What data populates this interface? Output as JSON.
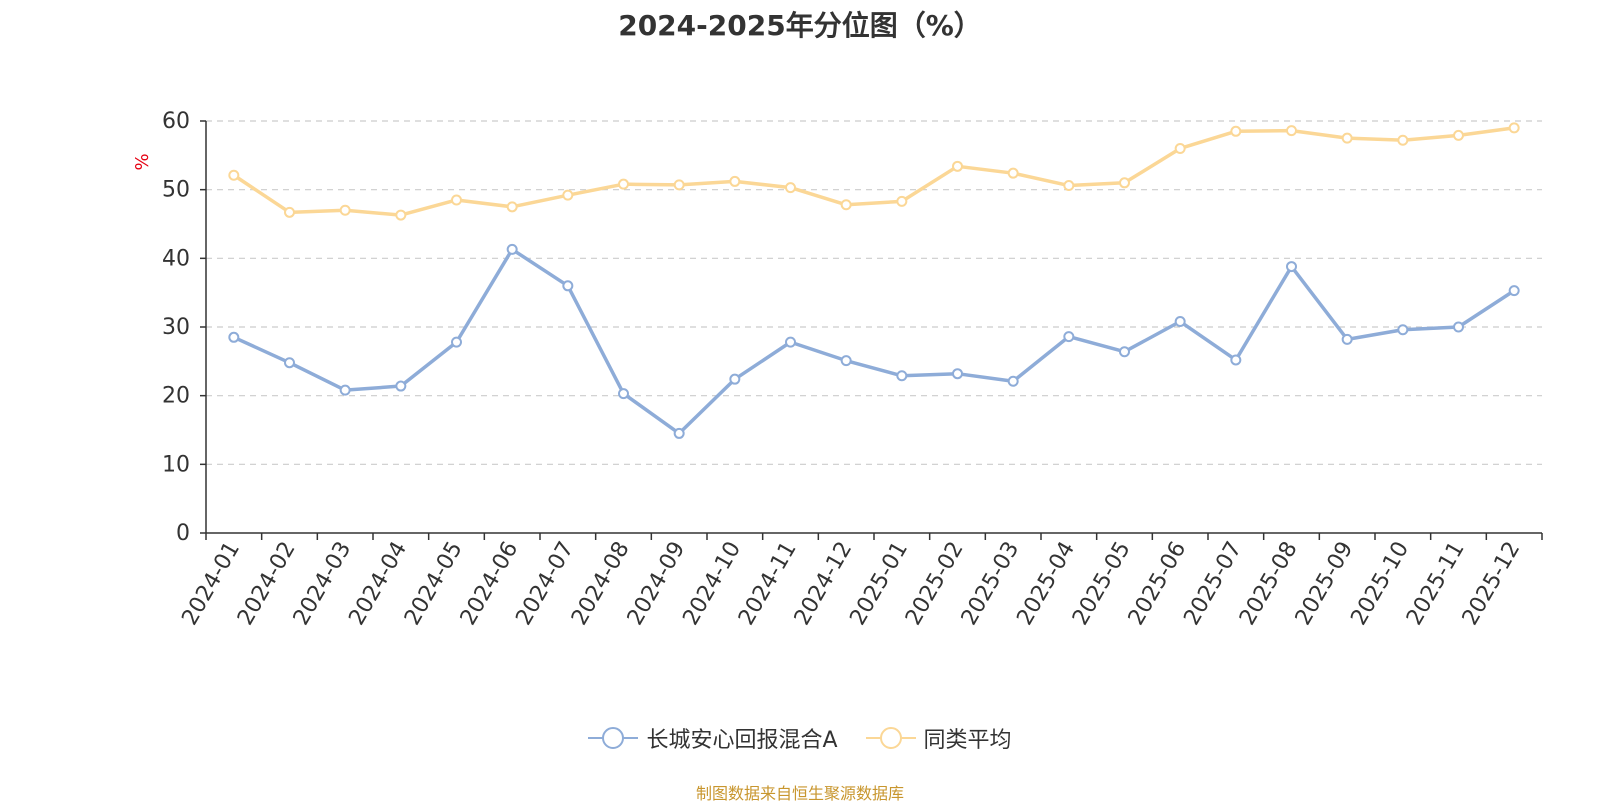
{
  "chart_data": {
    "type": "line",
    "title": "2024-2025年分位图（%）",
    "ylabel": "%",
    "xlabel": "",
    "ylim": [
      0,
      60
    ],
    "yticks": [
      0,
      10,
      20,
      30,
      40,
      50,
      60
    ],
    "grid": true,
    "legend_position": "bottom",
    "categories": [
      "2024-01",
      "2024-02",
      "2024-03",
      "2024-04",
      "2024-05",
      "2024-06",
      "2024-07",
      "2024-08",
      "2024-09",
      "2024-10",
      "2024-11",
      "2024-12",
      "2025-01",
      "2025-02",
      "2025-03",
      "2025-04",
      "2025-05",
      "2025-06",
      "2025-07",
      "2025-08",
      "2025-09",
      "2025-10",
      "2025-11",
      "2025-12"
    ],
    "series": [
      {
        "name": "长城安心回报混合A",
        "color": "#8eacd8",
        "values": [
          28.5,
          24.8,
          20.8,
          21.4,
          27.8,
          41.3,
          36.0,
          20.3,
          14.5,
          22.4,
          27.8,
          25.1,
          22.9,
          23.2,
          22.1,
          28.6,
          26.4,
          30.8,
          25.2,
          38.8,
          28.2,
          29.6,
          30.0,
          35.3
        ]
      },
      {
        "name": "同类平均",
        "color": "#fbd796",
        "values": [
          52.1,
          46.7,
          47.0,
          46.3,
          48.5,
          47.5,
          49.2,
          50.8,
          50.7,
          51.2,
          50.3,
          47.8,
          48.3,
          53.4,
          52.4,
          50.6,
          51.0,
          56.0,
          58.5,
          58.6,
          57.5,
          57.2,
          57.9,
          59.0
        ]
      }
    ],
    "source_note": "制图数据来自恒生聚源数据库"
  }
}
